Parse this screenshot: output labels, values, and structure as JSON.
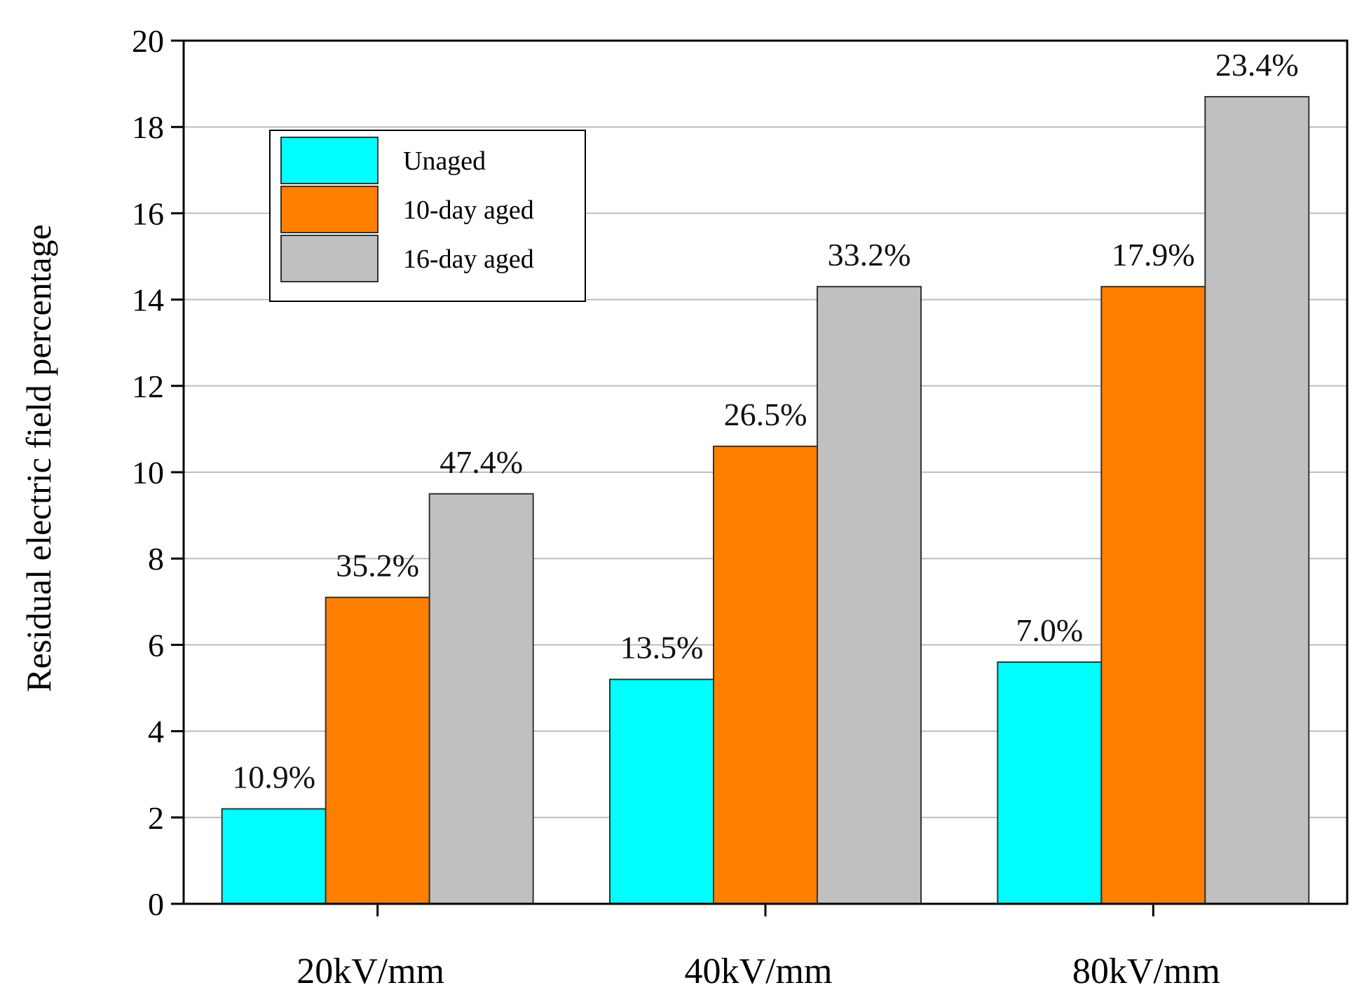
{
  "chart_data": {
    "type": "bar",
    "title": "",
    "xlabel": "",
    "ylabel": "Residual electric field percentage",
    "ylim": [
      0,
      20
    ],
    "yticks": [
      0,
      2,
      4,
      6,
      8,
      10,
      12,
      14,
      16,
      18,
      20
    ],
    "grid": true,
    "legend_position": "top-left",
    "categories": [
      "20kV/mm",
      "40kV/mm",
      "80kV/mm"
    ],
    "series": [
      {
        "name": "Unaged",
        "color": "#00FFFF",
        "values": [
          2.2,
          5.2,
          5.6
        ],
        "labels": [
          "10.9%",
          "13.5%",
          "7.0%"
        ]
      },
      {
        "name": "10-day aged",
        "color": "#FF8000",
        "values": [
          7.1,
          10.6,
          14.3
        ],
        "labels": [
          "35.2%",
          "26.5%",
          "17.9%"
        ]
      },
      {
        "name": "16-day aged",
        "color": "#C0C0C0",
        "values": [
          9.5,
          14.3,
          18.7
        ],
        "labels": [
          "47.4%",
          "33.2%",
          "23.4%"
        ]
      }
    ]
  }
}
